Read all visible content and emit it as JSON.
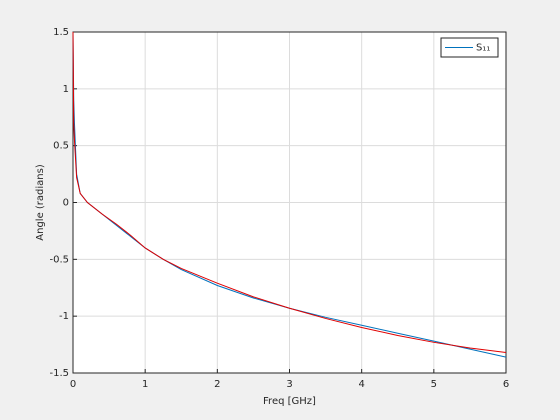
{
  "chart_data": {
    "type": "line",
    "xlabel": "Freq [GHz]",
    "ylabel": "Angle (radians)",
    "x": [
      0,
      0.01,
      0.02,
      0.05,
      0.1,
      0.2,
      0.4,
      0.6,
      0.8,
      1,
      1.25,
      1.5,
      2,
      2.5,
      3,
      3.5,
      4,
      4.5,
      5,
      5.5,
      6
    ],
    "series": [
      {
        "name": "S₁₁",
        "color": "#0072bd",
        "values": [
          1.5,
          0.9,
          0.7,
          0.25,
          0.08,
          0,
          -0.1,
          -0.2,
          -0.3,
          -0.4,
          -0.5,
          -0.59,
          -0.73,
          -0.84,
          -0.93,
          -1.01,
          -1.08,
          -1.15,
          -1.22,
          -1.29,
          -1.36
        ]
      },
      {
        "color": "#e00000",
        "values": [
          1.5,
          0.7,
          0.55,
          0.22,
          0.08,
          0,
          -0.1,
          -0.19,
          -0.29,
          -0.4,
          -0.5,
          -0.58,
          -0.71,
          -0.83,
          -0.93,
          -1.02,
          -1.1,
          -1.17,
          -1.23,
          -1.28,
          -1.32
        ]
      }
    ],
    "xlim": [
      0,
      6
    ],
    "xticks": [
      0,
      1,
      2,
      3,
      4,
      5,
      6
    ],
    "ylim": [
      -1.5,
      1.5
    ],
    "yticks": [
      -1.5,
      -1,
      -0.5,
      0,
      0.5,
      1,
      1.5
    ],
    "grid": true,
    "legend": "northeast"
  }
}
